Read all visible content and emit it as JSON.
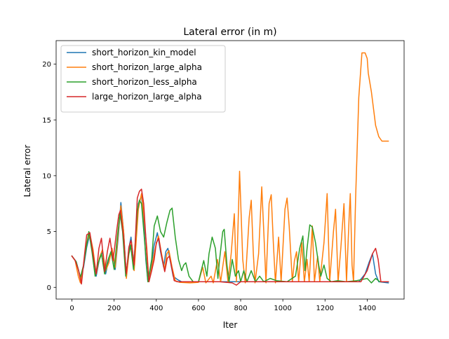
{
  "chart_data": {
    "type": "line",
    "title": "Lateral error (in m)",
    "xlabel": "Iter",
    "ylabel": "Lateral error",
    "xlim": [
      -75,
      1575
    ],
    "ylim": [
      -1.05,
      22.1
    ],
    "xticks": [
      0,
      200,
      400,
      600,
      800,
      1000,
      1200,
      1400
    ],
    "yticks": [
      0,
      5,
      10,
      15,
      20
    ],
    "grid": false,
    "legend_position": "top-left",
    "series": [
      {
        "name": "short_horizon_kin_model",
        "color": "#1f77b4",
        "points": [
          [
            0,
            2.8
          ],
          [
            20,
            2.3
          ],
          [
            40,
            0.9
          ],
          [
            55,
            1.8
          ],
          [
            70,
            3.6
          ],
          [
            85,
            4.8
          ],
          [
            100,
            3.0
          ],
          [
            115,
            1.0
          ],
          [
            130,
            2.5
          ],
          [
            145,
            3.2
          ],
          [
            160,
            1.2
          ],
          [
            175,
            2.6
          ],
          [
            190,
            3.4
          ],
          [
            205,
            1.6
          ],
          [
            220,
            4.6
          ],
          [
            232,
            7.6
          ],
          [
            245,
            5.0
          ],
          [
            258,
            1.0
          ],
          [
            270,
            3.5
          ],
          [
            280,
            4.5
          ],
          [
            295,
            2.0
          ],
          [
            315,
            7.5
          ],
          [
            330,
            8.2
          ],
          [
            340,
            6.0
          ],
          [
            350,
            2.5
          ],
          [
            360,
            0.5
          ],
          [
            375,
            1.8
          ],
          [
            390,
            3.8
          ],
          [
            405,
            4.9
          ],
          [
            420,
            3.2
          ],
          [
            435,
            1.8
          ],
          [
            445,
            3.2
          ],
          [
            455,
            3.5
          ],
          [
            470,
            2.0
          ],
          [
            480,
            1.0
          ],
          [
            500,
            0.7
          ],
          [
            520,
            0.5
          ],
          [
            600,
            0.5
          ],
          [
            700,
            0.5
          ],
          [
            800,
            0.5
          ],
          [
            900,
            0.5
          ],
          [
            1000,
            0.5
          ],
          [
            1100,
            0.5
          ],
          [
            1200,
            0.5
          ],
          [
            1300,
            0.5
          ],
          [
            1360,
            0.5
          ],
          [
            1390,
            1.2
          ],
          [
            1410,
            2.3
          ],
          [
            1425,
            3.0
          ],
          [
            1440,
            1.2
          ],
          [
            1455,
            0.5
          ],
          [
            1500,
            0.4
          ]
        ]
      },
      {
        "name": "short_horizon_large_alpha",
        "color": "#ff7f0e",
        "points": [
          [
            0,
            2.8
          ],
          [
            15,
            2.4
          ],
          [
            30,
            1.0
          ],
          [
            40,
            0.4
          ],
          [
            55,
            2.0
          ],
          [
            70,
            4.0
          ],
          [
            85,
            4.8
          ],
          [
            100,
            3.4
          ],
          [
            115,
            1.2
          ],
          [
            130,
            2.6
          ],
          [
            145,
            3.4
          ],
          [
            160,
            1.5
          ],
          [
            175,
            2.2
          ],
          [
            190,
            3.5
          ],
          [
            205,
            1.8
          ],
          [
            220,
            5.0
          ],
          [
            232,
            7.3
          ],
          [
            245,
            5.0
          ],
          [
            258,
            0.8
          ],
          [
            270,
            3.0
          ],
          [
            283,
            4.0
          ],
          [
            295,
            1.5
          ],
          [
            315,
            7.0
          ],
          [
            330,
            8.4
          ],
          [
            340,
            6.5
          ],
          [
            355,
            3.5
          ],
          [
            365,
            0.5
          ],
          [
            380,
            2.0
          ],
          [
            395,
            3.5
          ],
          [
            410,
            4.6
          ],
          [
            425,
            3.0
          ],
          [
            440,
            1.6
          ],
          [
            450,
            3.0
          ],
          [
            460,
            3.3
          ],
          [
            475,
            1.8
          ],
          [
            490,
            0.6
          ],
          [
            510,
            0.45
          ],
          [
            560,
            0.4
          ],
          [
            600,
            0.45
          ],
          [
            620,
            1.8
          ],
          [
            635,
            0.4
          ],
          [
            660,
            1.0
          ],
          [
            670,
            0.4
          ],
          [
            690,
            2.5
          ],
          [
            705,
            0.5
          ],
          [
            725,
            3.2
          ],
          [
            740,
            0.5
          ],
          [
            755,
            3.0
          ],
          [
            770,
            6.6
          ],
          [
            780,
            0.5
          ],
          [
            795,
            10.4
          ],
          [
            810,
            2.5
          ],
          [
            822,
            0.4
          ],
          [
            840,
            6.2
          ],
          [
            850,
            7.8
          ],
          [
            860,
            3.0
          ],
          [
            868,
            0.4
          ],
          [
            885,
            3.0
          ],
          [
            900,
            9.0
          ],
          [
            912,
            4.0
          ],
          [
            920,
            0.4
          ],
          [
            935,
            7.5
          ],
          [
            945,
            8.3
          ],
          [
            955,
            4.0
          ],
          [
            965,
            0.4
          ],
          [
            980,
            4.5
          ],
          [
            992,
            0.5
          ],
          [
            1010,
            7.0
          ],
          [
            1020,
            8.0
          ],
          [
            1030,
            5.5
          ],
          [
            1045,
            0.5
          ],
          [
            1055,
            2.4
          ],
          [
            1065,
            3.2
          ],
          [
            1075,
            0.5
          ],
          [
            1090,
            4.0
          ],
          [
            1102,
            0.5
          ],
          [
            1115,
            2.5
          ],
          [
            1125,
            0.5
          ],
          [
            1140,
            5.5
          ],
          [
            1150,
            0.5
          ],
          [
            1165,
            2.8
          ],
          [
            1175,
            0.5
          ],
          [
            1195,
            4.0
          ],
          [
            1210,
            8.4
          ],
          [
            1222,
            0.5
          ],
          [
            1240,
            5.0
          ],
          [
            1250,
            7.0
          ],
          [
            1262,
            0.5
          ],
          [
            1275,
            3.5
          ],
          [
            1290,
            7.5
          ],
          [
            1302,
            0.5
          ],
          [
            1315,
            6.5
          ],
          [
            1320,
            8.4
          ],
          [
            1328,
            2.0
          ],
          [
            1335,
            0.5
          ],
          [
            1345,
            8.0
          ],
          [
            1360,
            17.0
          ],
          [
            1375,
            21.0
          ],
          [
            1390,
            21.0
          ],
          [
            1400,
            20.5
          ],
          [
            1405,
            19.2
          ],
          [
            1420,
            17.5
          ],
          [
            1440,
            14.5
          ],
          [
            1455,
            13.5
          ],
          [
            1470,
            13.1
          ],
          [
            1500,
            13.1
          ]
        ]
      },
      {
        "name": "short_horizon_less_alpha",
        "color": "#2ca02c",
        "points": [
          [
            0,
            2.8
          ],
          [
            20,
            2.3
          ],
          [
            40,
            0.9
          ],
          [
            55,
            2.0
          ],
          [
            70,
            3.8
          ],
          [
            80,
            5.0
          ],
          [
            95,
            3.2
          ],
          [
            110,
            1.0
          ],
          [
            125,
            2.2
          ],
          [
            140,
            3.0
          ],
          [
            155,
            1.2
          ],
          [
            170,
            2.4
          ],
          [
            185,
            3.2
          ],
          [
            200,
            1.6
          ],
          [
            215,
            4.5
          ],
          [
            228,
            6.6
          ],
          [
            240,
            5.0
          ],
          [
            255,
            1.0
          ],
          [
            268,
            2.8
          ],
          [
            278,
            3.8
          ],
          [
            292,
            1.6
          ],
          [
            310,
            6.8
          ],
          [
            320,
            7.8
          ],
          [
            330,
            7.5
          ],
          [
            345,
            4.0
          ],
          [
            360,
            0.5
          ],
          [
            378,
            2.5
          ],
          [
            390,
            5.5
          ],
          [
            405,
            6.4
          ],
          [
            420,
            5.0
          ],
          [
            435,
            4.5
          ],
          [
            450,
            5.8
          ],
          [
            465,
            6.9
          ],
          [
            475,
            7.1
          ],
          [
            490,
            4.5
          ],
          [
            505,
            2.5
          ],
          [
            520,
            1.5
          ],
          [
            530,
            2.0
          ],
          [
            540,
            2.2
          ],
          [
            555,
            1.0
          ],
          [
            575,
            0.5
          ],
          [
            600,
            0.5
          ],
          [
            625,
            2.4
          ],
          [
            640,
            1.0
          ],
          [
            650,
            3.0
          ],
          [
            665,
            4.5
          ],
          [
            680,
            3.5
          ],
          [
            692,
            0.8
          ],
          [
            700,
            2.5
          ],
          [
            715,
            5.0
          ],
          [
            722,
            5.2
          ],
          [
            735,
            2.0
          ],
          [
            745,
            0.5
          ],
          [
            760,
            2.5
          ],
          [
            775,
            1.0
          ],
          [
            790,
            1.5
          ],
          [
            800,
            0.5
          ],
          [
            815,
            1.5
          ],
          [
            830,
            0.5
          ],
          [
            850,
            1.5
          ],
          [
            870,
            0.5
          ],
          [
            890,
            1.0
          ],
          [
            910,
            0.5
          ],
          [
            940,
            0.8
          ],
          [
            970,
            0.6
          ],
          [
            1020,
            0.5
          ],
          [
            1060,
            1.0
          ],
          [
            1080,
            3.5
          ],
          [
            1095,
            4.6
          ],
          [
            1105,
            1.5
          ],
          [
            1115,
            3.5
          ],
          [
            1128,
            5.6
          ],
          [
            1140,
            5.4
          ],
          [
            1155,
            4.0
          ],
          [
            1170,
            2.0
          ],
          [
            1180,
            1.0
          ],
          [
            1195,
            2.0
          ],
          [
            1210,
            0.8
          ],
          [
            1230,
            0.5
          ],
          [
            1260,
            0.6
          ],
          [
            1300,
            0.5
          ],
          [
            1350,
            0.6
          ],
          [
            1400,
            0.8
          ],
          [
            1420,
            0.4
          ],
          [
            1440,
            0.8
          ],
          [
            1460,
            0.5
          ],
          [
            1500,
            0.5
          ]
        ]
      },
      {
        "name": "large_horizon_large_alpha",
        "color": "#d62728",
        "points": [
          [
            0,
            2.8
          ],
          [
            15,
            2.4
          ],
          [
            30,
            1.6
          ],
          [
            45,
            0.3
          ],
          [
            60,
            3.0
          ],
          [
            70,
            4.7
          ],
          [
            85,
            4.9
          ],
          [
            100,
            3.0
          ],
          [
            115,
            1.2
          ],
          [
            128,
            3.5
          ],
          [
            140,
            4.4
          ],
          [
            155,
            1.4
          ],
          [
            168,
            3.2
          ],
          [
            180,
            4.4
          ],
          [
            195,
            2.4
          ],
          [
            210,
            4.8
          ],
          [
            222,
            6.5
          ],
          [
            230,
            6.9
          ],
          [
            245,
            4.5
          ],
          [
            258,
            1.2
          ],
          [
            270,
            3.6
          ],
          [
            280,
            4.2
          ],
          [
            295,
            2.0
          ],
          [
            310,
            8.0
          ],
          [
            320,
            8.6
          ],
          [
            330,
            8.8
          ],
          [
            340,
            7.5
          ],
          [
            355,
            3.0
          ],
          [
            365,
            0.5
          ],
          [
            378,
            1.5
          ],
          [
            390,
            2.5
          ],
          [
            400,
            4.0
          ],
          [
            412,
            4.4
          ],
          [
            425,
            2.8
          ],
          [
            440,
            1.4
          ],
          [
            452,
            2.6
          ],
          [
            462,
            2.8
          ],
          [
            475,
            1.6
          ],
          [
            485,
            0.6
          ],
          [
            500,
            0.5
          ],
          [
            600,
            0.5
          ],
          [
            700,
            0.5
          ],
          [
            760,
            0.4
          ],
          [
            780,
            0.2
          ],
          [
            800,
            0.5
          ],
          [
            900,
            0.5
          ],
          [
            1000,
            0.5
          ],
          [
            1100,
            0.5
          ],
          [
            1200,
            0.5
          ],
          [
            1300,
            0.5
          ],
          [
            1370,
            0.5
          ],
          [
            1400,
            1.5
          ],
          [
            1425,
            3.0
          ],
          [
            1440,
            3.5
          ],
          [
            1452,
            2.5
          ],
          [
            1465,
            0.5
          ],
          [
            1500,
            0.5
          ]
        ]
      }
    ]
  }
}
